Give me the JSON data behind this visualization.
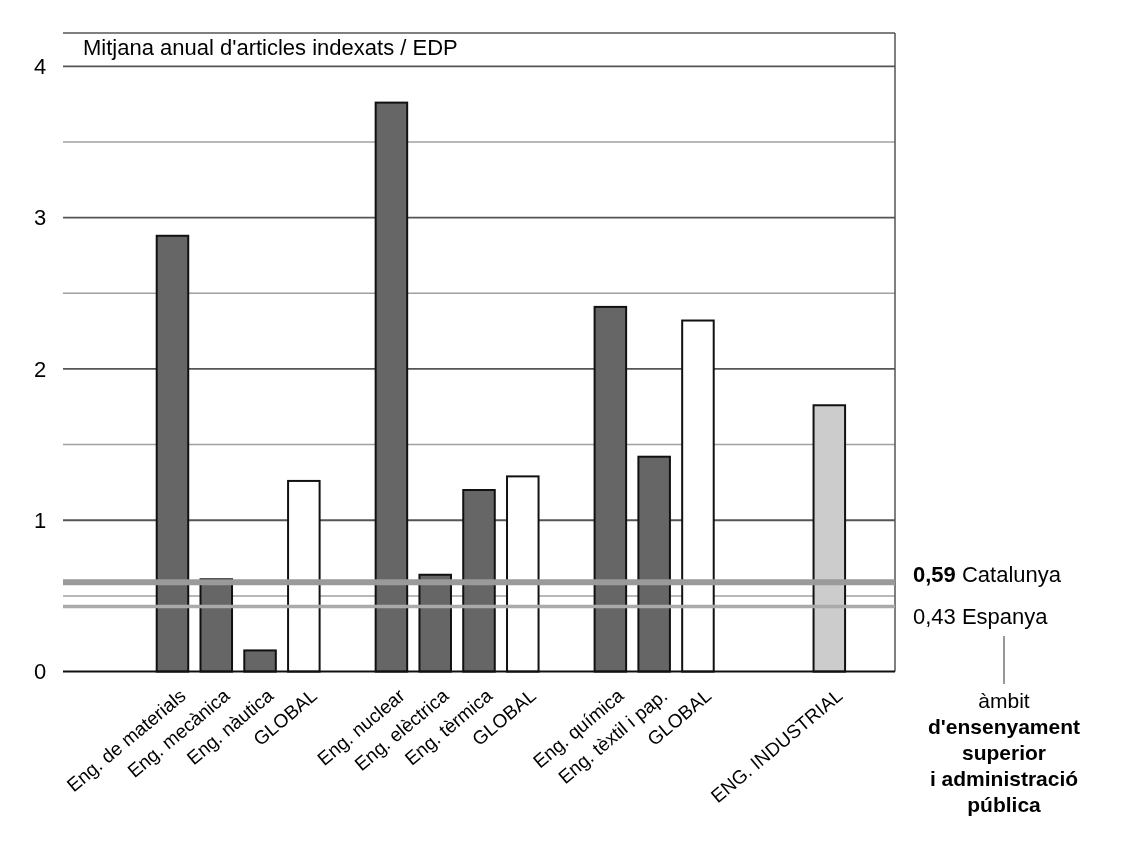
{
  "chart_data": {
    "type": "bar",
    "title": "Mitjana anual d'articles indexats / EDP",
    "categories": [
      null,
      null,
      "Eng. de materials",
      "Eng. mecànica",
      "Eng. nàutica",
      "GLOBAL",
      null,
      "Eng. nuclear",
      "Eng. elèctrica",
      "Eng. tèrmica",
      "GLOBAL",
      null,
      "Eng. química",
      "Eng. tèxtil i pap.",
      "GLOBAL",
      null,
      null,
      "ENG. INDUSTRIAL",
      null
    ],
    "values": [
      null,
      null,
      2.88,
      0.61,
      0.14,
      1.26,
      null,
      3.76,
      0.64,
      1.2,
      1.29,
      null,
      2.41,
      1.42,
      2.32,
      null,
      null,
      1.76,
      null
    ],
    "colors": [
      null,
      null,
      "#666666",
      "#666666",
      "#666666",
      "#ffffff",
      null,
      "#666666",
      "#666666",
      "#666666",
      "#ffffff",
      null,
      "#666666",
      "#666666",
      "#ffffff",
      null,
      null,
      "#cccccc",
      null
    ],
    "ylim": [
      0,
      4.22
    ],
    "yticks": [
      0,
      {
        "value": 0.5,
        "label": null
      },
      1,
      {
        "value": 1.5,
        "label": null
      },
      2,
      {
        "value": 2.5,
        "label": null
      },
      3,
      {
        "value": 3.5,
        "label": null
      },
      4
    ],
    "grid": "y",
    "ref_lines": [
      {
        "axis": "y",
        "value": 0.59,
        "label": "0,59 Catalunya",
        "color": "#9a9a9a"
      },
      {
        "axis": "y",
        "value": 0.43,
        "label": "0,43 Espanya",
        "color": "#aaaaaa"
      }
    ],
    "annotations": [
      "àmbit d'ensenyament superior i administració pública"
    ]
  }
}
